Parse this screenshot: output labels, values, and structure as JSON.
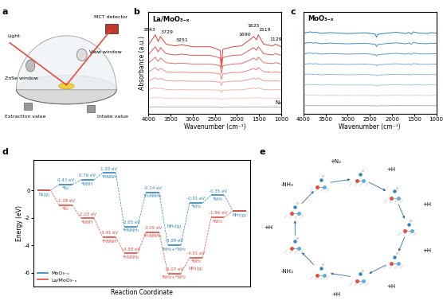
{
  "panel_labels": [
    "a",
    "b",
    "c",
    "d",
    "e"
  ],
  "schematic": {
    "light": "Light",
    "detector": "MCT detector",
    "window": "ZnSe window",
    "view": "View window",
    "outlet": "Extraction value",
    "inlet": "Intake value"
  },
  "chart_data": [
    {
      "type": "line",
      "title": "La/MoO₃₋ₓ",
      "x_label": "Wavenumber (cm⁻¹)",
      "y_label": "Absorbance (a.u.)",
      "x": [
        4000,
        3843,
        3780,
        3729,
        3600,
        3400,
        3251,
        3000,
        2600,
        2380,
        2350,
        2320,
        2100,
        1900,
        1690,
        1625,
        1560,
        1519,
        1400,
        1200,
        1129,
        1000
      ],
      "xlim": [
        4000,
        1000
      ],
      "xticks": [
        4000,
        3500,
        3000,
        2500,
        2000,
        1500,
        1000
      ],
      "ylim": [
        -0.8,
        11.0
      ],
      "tick_labels": "x",
      "peak_labels": [
        3843,
        3729,
        3251,
        1690,
        1625,
        1519,
        1129
      ],
      "series": [
        {
          "color": "#d9443a",
          "values": [
            7.2,
            8.4,
            7.6,
            8.2,
            7.3,
            7.1,
            7.25,
            7.0,
            7.0,
            6.6,
            4.8,
            6.7,
            7.0,
            7.1,
            7.9,
            8.2,
            7.8,
            8.4,
            7.3,
            7.1,
            7.3,
            7.0
          ]
        },
        {
          "color": "#de5a50",
          "values": [
            6.1,
            7.0,
            6.4,
            6.9,
            6.2,
            6.05,
            6.15,
            6.0,
            6.0,
            5.7,
            4.5,
            5.75,
            6.0,
            6.05,
            6.7,
            6.9,
            6.6,
            7.0,
            6.2,
            6.05,
            6.2,
            6.0
          ]
        },
        {
          "color": "#e3706a",
          "values": [
            5.1,
            5.8,
            5.3,
            5.7,
            5.15,
            5.05,
            5.1,
            5.0,
            5.0,
            4.8,
            3.9,
            4.8,
            5.0,
            5.05,
            5.5,
            5.7,
            5.45,
            5.8,
            5.15,
            5.05,
            5.15,
            5.0
          ]
        },
        {
          "color": "#e88880",
          "values": [
            4.05,
            4.6,
            4.25,
            4.5,
            4.1,
            4.02,
            4.06,
            4.0,
            4.0,
            3.85,
            3.2,
            3.85,
            4.0,
            4.02,
            4.35,
            4.5,
            4.3,
            4.6,
            4.1,
            4.02,
            4.1,
            4.0
          ]
        },
        {
          "color": "#ed9e98",
          "values": [
            3.05,
            3.4,
            3.2,
            3.35,
            3.08,
            3.02,
            3.04,
            3.0,
            3.0,
            2.9,
            2.5,
            2.9,
            3.0,
            3.02,
            3.25,
            3.35,
            3.2,
            3.4,
            3.05,
            3.02,
            3.05,
            3.0
          ]
        },
        {
          "color": "#f2b5b0",
          "values": [
            2.02,
            2.25,
            2.12,
            2.2,
            2.05,
            2.01,
            2.02,
            2.0,
            2.0,
            1.95,
            1.7,
            1.95,
            2.0,
            2.01,
            2.15,
            2.2,
            2.1,
            2.25,
            2.03,
            2.01,
            2.03,
            2.0
          ]
        },
        {
          "color": "#f6cbc7",
          "values": [
            1.01,
            1.12,
            1.06,
            1.1,
            1.02,
            1.0,
            1.01,
            1.0,
            1.0,
            0.97,
            0.85,
            0.97,
            1.0,
            1.0,
            1.07,
            1.1,
            1.05,
            1.12,
            1.01,
            1.0,
            1.01,
            1.0
          ]
        },
        {
          "name": "N₂",
          "color": "#b0b0b0",
          "values": [
            0.0,
            0.02,
            0.01,
            0.02,
            0.0,
            0.0,
            0.0,
            0.0,
            0.0,
            -0.02,
            -0.1,
            -0.02,
            0.0,
            0.0,
            0.01,
            0.02,
            0.01,
            0.02,
            0.0,
            0.0,
            0.0,
            0.0
          ]
        }
      ]
    },
    {
      "type": "line",
      "title": "MoO₃₋ₓ",
      "x_label": "Wavenumber (cm⁻¹)",
      "x": [
        4000,
        3843,
        3780,
        3729,
        3600,
        3400,
        3251,
        3000,
        2600,
        2380,
        2350,
        2320,
        2100,
        1900,
        1690,
        1625,
        1560,
        1519,
        1400,
        1200,
        1129,
        1000
      ],
      "xlim": [
        4000,
        1000
      ],
      "xticks": [
        4000,
        3500,
        3000,
        2500,
        2000,
        1500,
        1000
      ],
      "ylim": [
        -0.8,
        9.0
      ],
      "tick_labels": "x",
      "series": [
        {
          "color": "#2f7fb8",
          "values": [
            7.0,
            7.12,
            7.04,
            7.1,
            6.96,
            7.05,
            7.0,
            6.95,
            7.02,
            6.9,
            6.6,
            6.88,
            7.0,
            7.08,
            6.95,
            7.06,
            6.9,
            7.12,
            7.0,
            6.96,
            7.04,
            7.0
          ]
        },
        {
          "color": "#4a8fc2",
          "values": [
            6.0,
            6.1,
            6.03,
            6.08,
            5.97,
            6.04,
            6.0,
            5.96,
            6.02,
            5.92,
            5.7,
            5.9,
            6.0,
            6.06,
            5.96,
            6.05,
            5.92,
            6.1,
            6.0,
            5.97,
            6.03,
            6.0
          ]
        },
        {
          "color": "#609dca",
          "values": [
            5.0,
            5.08,
            5.02,
            5.06,
            4.97,
            5.03,
            5.0,
            4.97,
            5.01,
            4.93,
            4.78,
            4.92,
            5.0,
            5.05,
            4.97,
            5.04,
            4.94,
            5.08,
            5.0,
            4.98,
            5.02,
            5.0
          ]
        },
        {
          "color": "#78acd2",
          "values": [
            4.0,
            4.06,
            4.02,
            4.05,
            3.98,
            4.02,
            4.0,
            3.98,
            4.01,
            3.95,
            3.84,
            3.94,
            4.0,
            4.04,
            3.98,
            4.03,
            3.95,
            4.06,
            4.0,
            3.98,
            4.02,
            4.0
          ]
        },
        {
          "color": "#90bbda",
          "values": [
            3.0,
            3.05,
            3.01,
            3.04,
            2.98,
            3.02,
            3.0,
            2.98,
            3.01,
            2.96,
            2.88,
            2.95,
            3.0,
            3.03,
            2.98,
            3.02,
            2.96,
            3.05,
            3.0,
            2.99,
            3.01,
            3.0
          ]
        },
        {
          "color": "#a6c9e2",
          "values": [
            2.0,
            2.04,
            2.01,
            2.03,
            1.99,
            2.01,
            2.0,
            1.99,
            2.0,
            1.97,
            1.9,
            1.96,
            2.0,
            2.02,
            1.99,
            2.02,
            1.97,
            2.04,
            2.0,
            1.99,
            2.01,
            2.0
          ]
        },
        {
          "color": "#bdd8ea",
          "values": [
            1.0,
            1.03,
            1.01,
            1.02,
            0.99,
            1.01,
            1.0,
            0.99,
            1.0,
            0.98,
            0.93,
            0.98,
            1.0,
            1.02,
            0.99,
            1.01,
            0.98,
            1.03,
            1.0,
            0.99,
            1.01,
            1.0
          ]
        },
        {
          "color": "#b0b0b0",
          "values": [
            0.0,
            0.01,
            0.0,
            0.01,
            0.0,
            0.0,
            0.0,
            0.0,
            0.0,
            -0.01,
            -0.05,
            -0.01,
            0.0,
            0.01,
            0.0,
            0.01,
            0.0,
            0.01,
            0.0,
            0.0,
            0.0,
            0.0
          ]
        }
      ]
    },
    {
      "type": "step",
      "x_label": "Reaction Coordinate",
      "y_label": "Energy (eV)",
      "ylim": [
        -7,
        2.2
      ],
      "yticks": [
        -6,
        -4,
        -2,
        0
      ],
      "tick_labels": "y",
      "legend": "lower left",
      "series": [
        {
          "name": "MoO₃₋ₓ",
          "color": "#2e86c1",
          "values": [
            0,
            0.43,
            0.76,
            1.28,
            -2.65,
            -0.14,
            -3.99,
            -0.91,
            -0.35,
            -1.5
          ],
          "value_labels": [
            null,
            "0.43 eV",
            "0.76 eV",
            "1.28 eV",
            "-2.65 eV",
            "-0.14 eV",
            "-3.99 eV",
            "-0.91 eV",
            "-0.35 eV",
            null
          ],
          "level_labels": [
            "N₂(g)",
            "*N₂",
            "*NNH",
            "*HNNH",
            "*HNNH₂",
            "*H₂NNH₂",
            "*NH₃+*NH₂",
            "*NH₂",
            "*NH₃",
            "NH₃(g)"
          ],
          "annotations": [
            {
              "text": "NH₃(g)",
              "step": 6
            }
          ]
        },
        {
          "name": "La/MoO₃₋ₓ",
          "color": "#e74c3c",
          "values": [
            0,
            -1.08,
            -2.03,
            -3.41,
            -4.58,
            -3.05,
            -6.07,
            -4.91,
            -1.96,
            -1.5
          ],
          "value_labels": [
            null,
            "-1.08 eV",
            "-2.03 eV",
            "-3.41 eV",
            "-4.58 eV",
            "-3.05 eV",
            "-6.07 eV",
            "-4.91 eV",
            "-1.96 eV",
            null
          ],
          "level_labels": [
            null,
            "*N₂",
            "*NNH",
            "*HNNH",
            "*HNNH₂",
            "*H₂NNH₂",
            "*NH₃+*NH₂",
            "*NH₂",
            "*NH₃",
            null
          ],
          "annotations": [
            {
              "text": "NH₃(g)",
              "step": 7
            }
          ]
        }
      ]
    }
  ],
  "cycle": {
    "steps": [
      "+N₂",
      "+H",
      "+H",
      "+H",
      "+H",
      "+H",
      "-NH₃",
      "+H",
      "-NH₃"
    ]
  }
}
